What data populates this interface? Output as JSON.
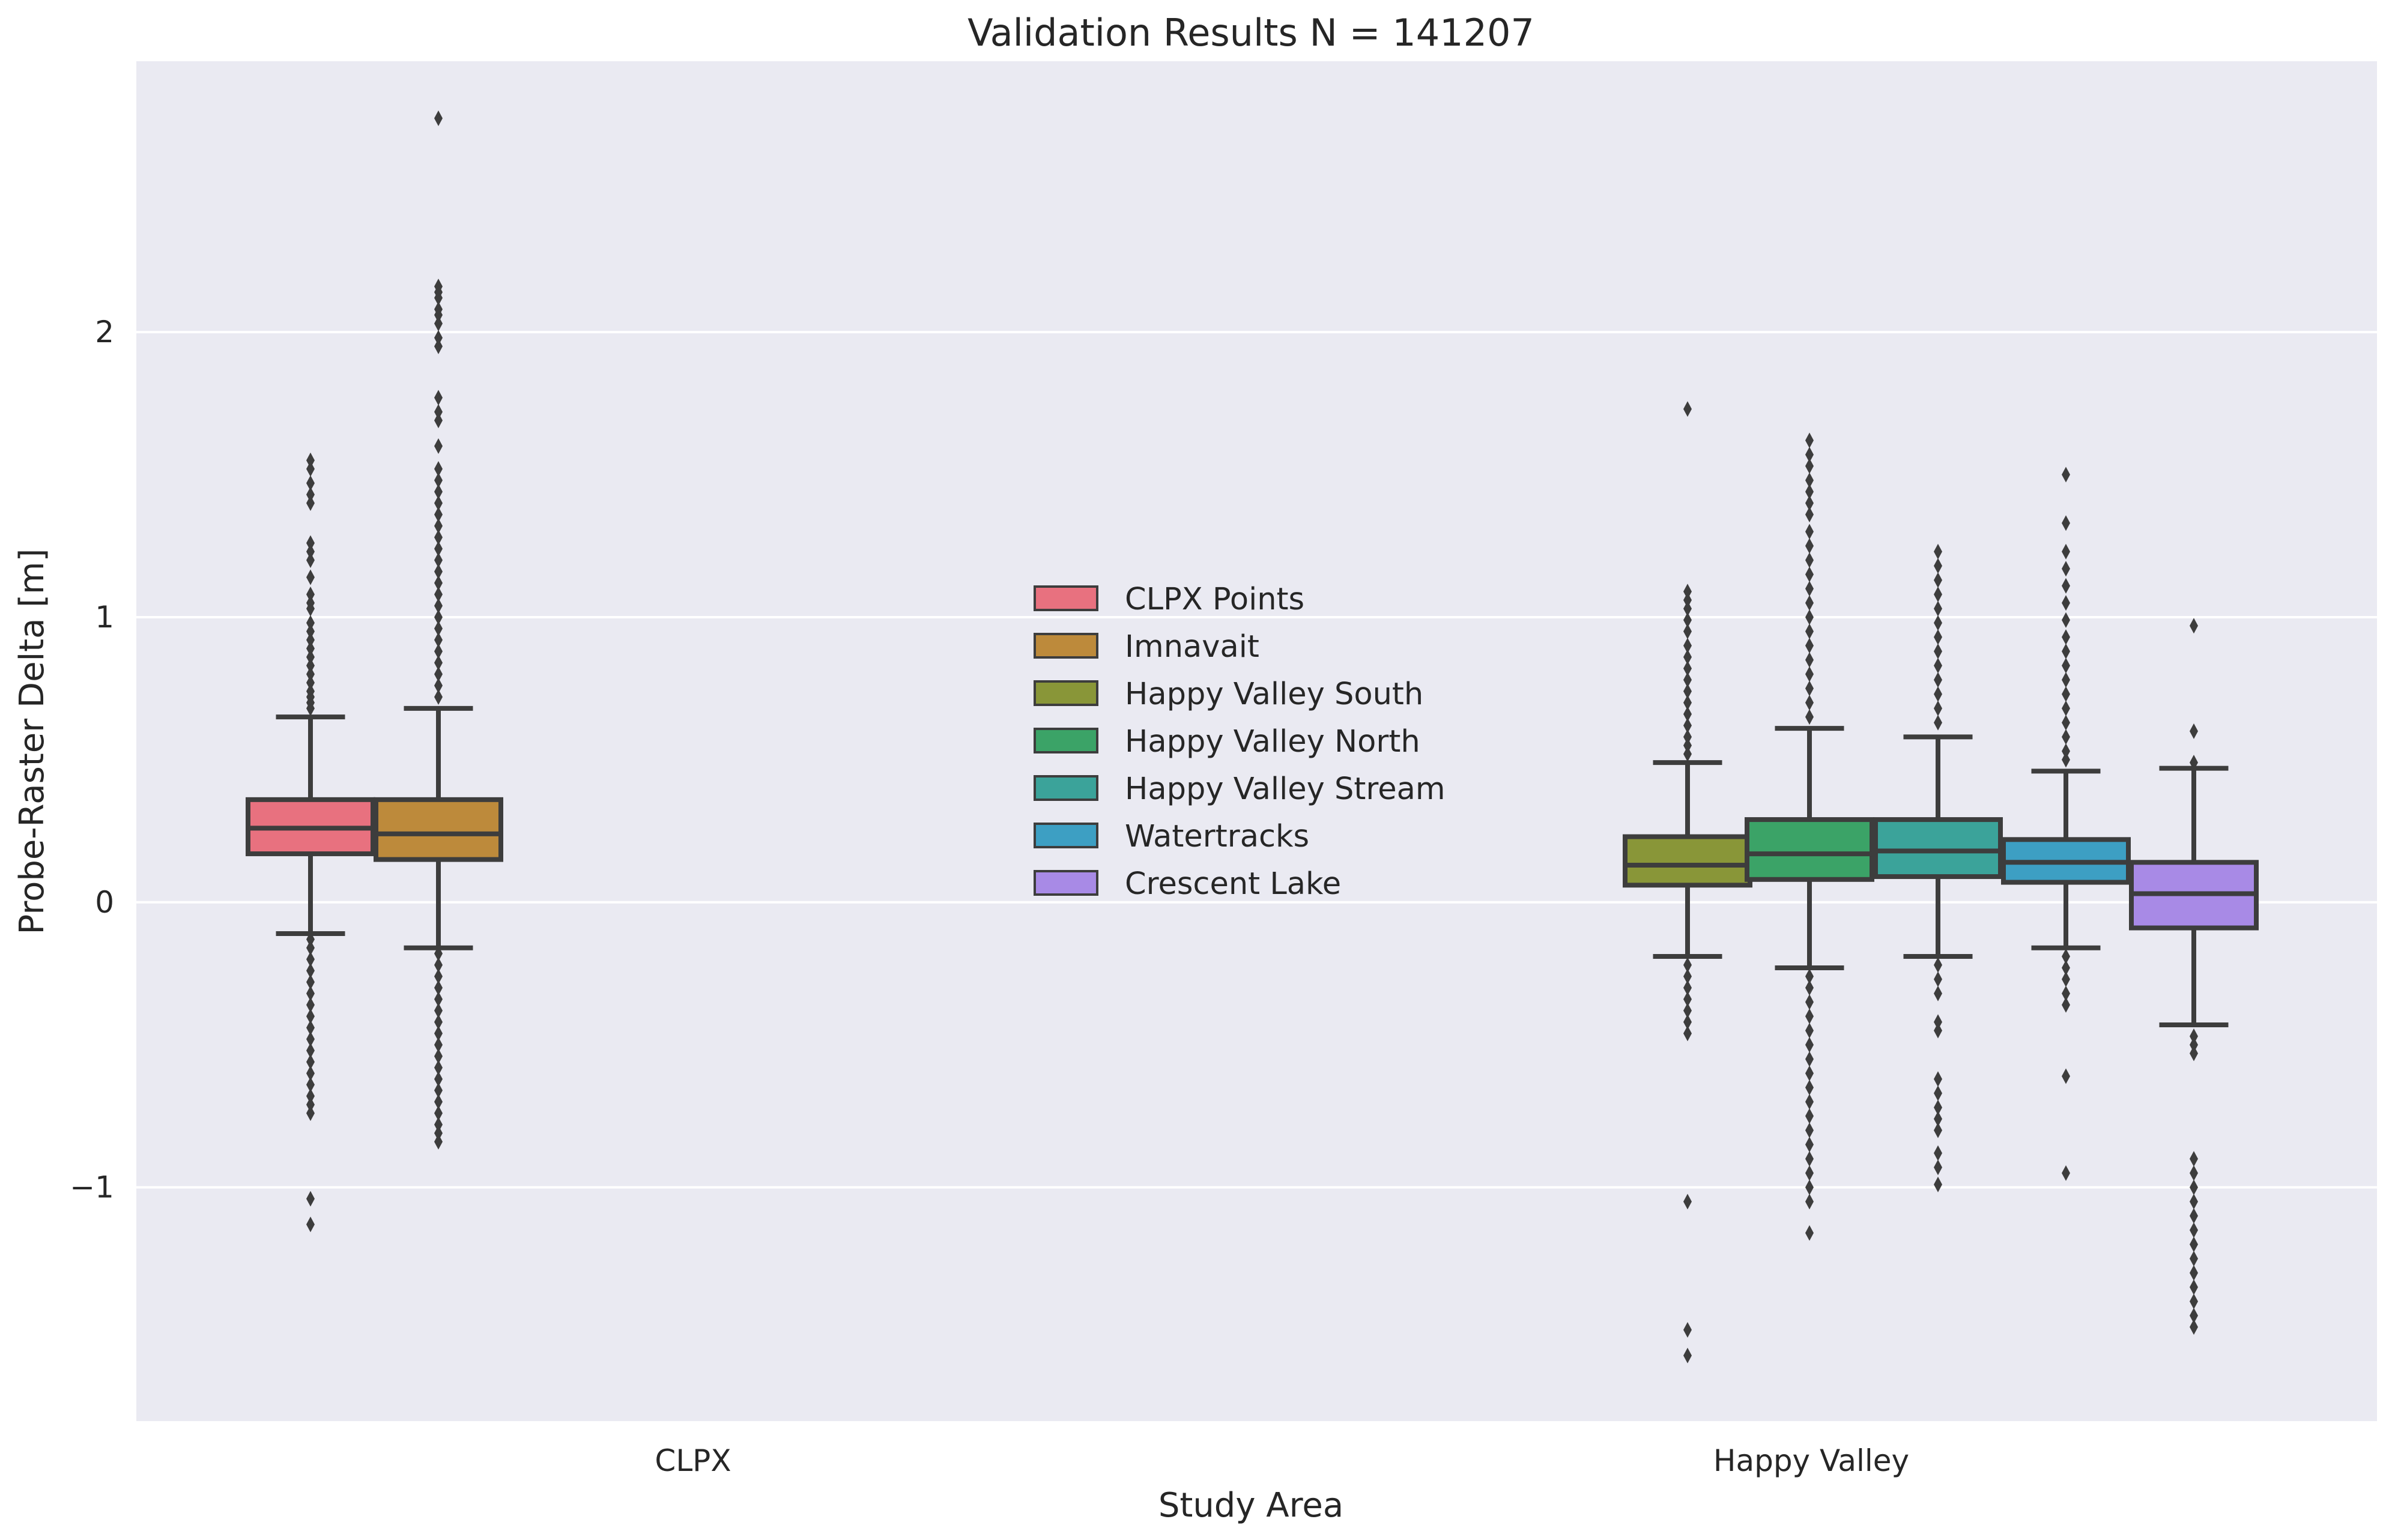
{
  "chart_data": {
    "type": "box",
    "title": "Validation Results N = 141207",
    "xlabel": "Study Area",
    "ylabel": "Probe-Raster Delta [m]",
    "ylim": [
      -1.82,
      2.95
    ],
    "yticks": [
      -1,
      0,
      1,
      2
    ],
    "ytick_labels": [
      "−1",
      "0",
      "1",
      "2"
    ],
    "grid": true,
    "legend_position": "center",
    "categories": [
      "CLPX",
      "Happy Valley"
    ],
    "series": [
      {
        "name": "CLPX Points",
        "color": "#e8717f",
        "category": "CLPX",
        "slot": 0,
        "q1": 0.17,
        "median": 0.26,
        "q3": 0.36,
        "whisker_low": -0.11,
        "whisker_high": 0.65,
        "outliers": [
          1.55,
          1.52,
          1.47,
          1.43,
          1.4,
          1.26,
          1.23,
          1.2,
          1.14,
          1.08,
          1.05,
          1.03,
          0.98,
          0.95,
          0.92,
          0.89,
          0.86,
          0.83,
          0.8,
          0.77,
          0.74,
          0.72,
          0.7,
          0.68,
          -0.13,
          -0.16,
          -0.2,
          -0.24,
          -0.28,
          -0.32,
          -0.36,
          -0.4,
          -0.44,
          -0.48,
          -0.52,
          -0.56,
          -0.6,
          -0.64,
          -0.68,
          -0.71,
          -0.74,
          -1.04,
          -1.13
        ]
      },
      {
        "name": "Imnavait",
        "color": "#bd8a3b",
        "category": "CLPX",
        "slot": 1,
        "q1": 0.15,
        "median": 0.24,
        "q3": 0.36,
        "whisker_low": -0.16,
        "whisker_high": 0.68,
        "outliers": [
          2.75,
          2.16,
          2.14,
          2.12,
          2.08,
          2.06,
          2.03,
          1.98,
          1.95,
          1.77,
          1.72,
          1.69,
          1.6,
          1.52,
          1.48,
          1.44,
          1.4,
          1.36,
          1.32,
          1.28,
          1.24,
          1.2,
          1.16,
          1.12,
          1.08,
          1.04,
          1.0,
          0.96,
          0.92,
          0.88,
          0.84,
          0.8,
          0.76,
          0.72,
          -0.18,
          -0.22,
          -0.26,
          -0.3,
          -0.34,
          -0.38,
          -0.42,
          -0.46,
          -0.5,
          -0.54,
          -0.58,
          -0.62,
          -0.66,
          -0.7,
          -0.74,
          -0.78,
          -0.81,
          -0.84
        ]
      },
      {
        "name": "Happy Valley South",
        "color": "#899638",
        "category": "Happy Valley",
        "slot": 2,
        "q1": 0.06,
        "median": 0.13,
        "q3": 0.23,
        "whisker_low": -0.19,
        "whisker_high": 0.49,
        "outliers": [
          1.73,
          1.09,
          1.06,
          1.03,
          0.99,
          0.95,
          0.9,
          0.86,
          0.82,
          0.78,
          0.74,
          0.7,
          0.66,
          0.62,
          0.58,
          0.55,
          0.52,
          -0.22,
          -0.26,
          -0.3,
          -0.34,
          -0.38,
          -0.42,
          -0.46,
          -1.05,
          -1.5,
          -1.59
        ]
      },
      {
        "name": "Happy Valley North",
        "color": "#3ba367",
        "category": "Happy Valley",
        "slot": 3,
        "q1": 0.08,
        "median": 0.17,
        "q3": 0.29,
        "whisker_low": -0.23,
        "whisker_high": 0.61,
        "outliers": [
          1.62,
          1.57,
          1.53,
          1.48,
          1.44,
          1.4,
          1.36,
          1.3,
          1.25,
          1.2,
          1.15,
          1.1,
          1.05,
          1.0,
          0.95,
          0.9,
          0.85,
          0.8,
          0.75,
          0.7,
          0.65,
          -0.26,
          -0.3,
          -0.35,
          -0.4,
          -0.45,
          -0.5,
          -0.55,
          -0.6,
          -0.65,
          -0.7,
          -0.75,
          -0.8,
          -0.85,
          -0.9,
          -0.95,
          -1.0,
          -1.05,
          -1.16
        ]
      },
      {
        "name": "Happy Valley Stream",
        "color": "#3ba39a",
        "category": "Happy Valley",
        "slot": 4,
        "q1": 0.09,
        "median": 0.18,
        "q3": 0.29,
        "whisker_low": -0.19,
        "whisker_high": 0.58,
        "outliers": [
          1.23,
          1.18,
          1.13,
          1.08,
          1.03,
          0.98,
          0.93,
          0.88,
          0.83,
          0.78,
          0.73,
          0.68,
          0.63,
          -0.22,
          -0.27,
          -0.32,
          -0.42,
          -0.45,
          -0.62,
          -0.67,
          -0.72,
          -0.76,
          -0.8,
          -0.88,
          -0.93,
          -0.99
        ]
      },
      {
        "name": "Watertracks",
        "color": "#3d9fc3",
        "category": "Happy Valley",
        "slot": 5,
        "q1": 0.07,
        "median": 0.14,
        "q3": 0.22,
        "whisker_low": -0.16,
        "whisker_high": 0.46,
        "outliers": [
          1.5,
          1.33,
          1.23,
          1.17,
          1.11,
          1.05,
          0.99,
          0.93,
          0.88,
          0.83,
          0.78,
          0.73,
          0.68,
          0.63,
          0.58,
          0.53,
          0.5,
          -0.19,
          -0.23,
          -0.27,
          -0.32,
          -0.36,
          -0.61,
          -0.95
        ]
      },
      {
        "name": "Crescent Lake",
        "color": "#a88ae6",
        "category": "Happy Valley",
        "slot": 6,
        "q1": -0.09,
        "median": 0.03,
        "q3": 0.14,
        "whisker_low": -0.43,
        "whisker_high": 0.47,
        "outliers": [
          0.97,
          0.6,
          0.49,
          -0.47,
          -0.5,
          -0.53,
          -0.9,
          -0.95,
          -1.0,
          -1.05,
          -1.1,
          -1.15,
          -1.2,
          -1.25,
          -1.3,
          -1.35,
          -1.4,
          -1.45,
          -1.49
        ]
      }
    ]
  }
}
